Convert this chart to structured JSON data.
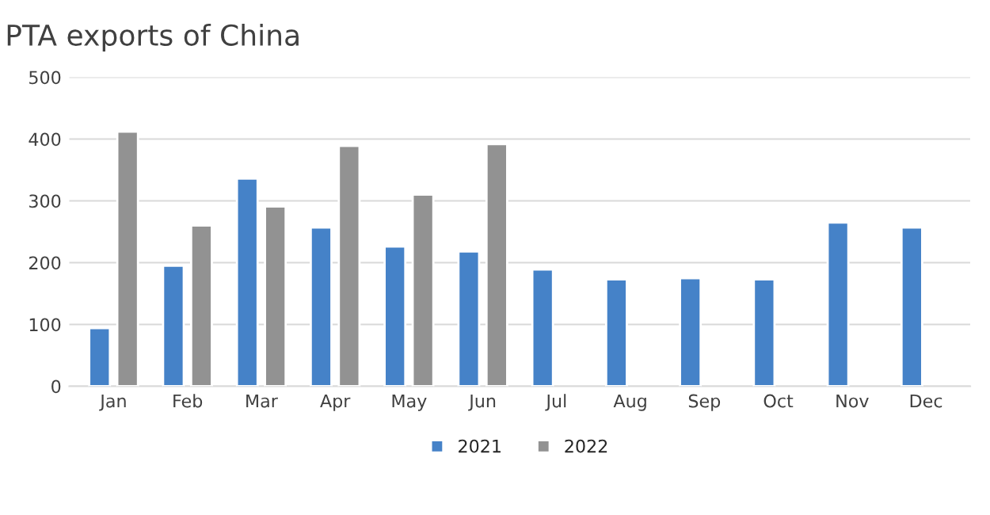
{
  "chart_data": {
    "type": "bar",
    "title": "PTA exports of China",
    "categories": [
      "Jan",
      "Feb",
      "Mar",
      "Apr",
      "May",
      "Jun",
      "Jul",
      "Aug",
      "Sep",
      "Oct",
      "Nov",
      "Dec"
    ],
    "series": [
      {
        "name": "2021",
        "color": "#4582c8",
        "values": [
          94,
          195,
          336,
          257,
          226,
          218,
          189,
          173,
          175,
          173,
          265,
          257
        ]
      },
      {
        "name": "2022",
        "color": "#929292",
        "values": [
          412,
          260,
          291,
          389,
          310,
          392,
          null,
          null,
          null,
          null,
          null,
          null
        ]
      }
    ],
    "ylim": [
      0,
      500
    ],
    "yticks": [
      0,
      100,
      200,
      300,
      400,
      500
    ],
    "grid": "y",
    "legend": "bottom"
  }
}
